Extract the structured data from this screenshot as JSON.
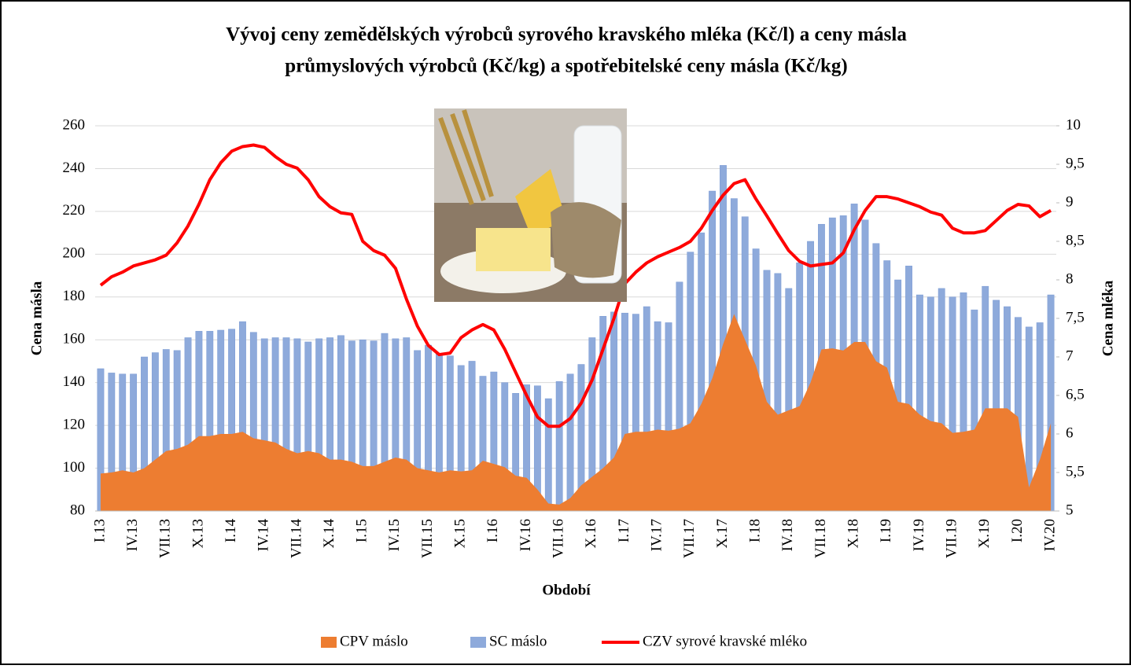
{
  "chart_data": {
    "type": "combo",
    "title": [
      "Vývoj ceny zemědělských  výrobců syrového kravského mléka (Kč/l) a  ceny másla",
      "průmyslových výrobců (Kč/kg) a spotřebitelské ceny másla (Kč/kg)"
    ],
    "x_label": "Období",
    "y_label": "Cena másla",
    "y2_label": "Cena mléka",
    "categories": [
      "I.13",
      null,
      null,
      "IV.13",
      null,
      null,
      "VII.13",
      null,
      null,
      "X.13",
      null,
      null,
      "I.14",
      null,
      null,
      "IV.14",
      null,
      null,
      "VII.14",
      null,
      null,
      "X.14",
      null,
      null,
      "I.15",
      null,
      null,
      "IV.15",
      null,
      null,
      "VII.15",
      null,
      null,
      "X.15",
      null,
      null,
      "I.16",
      null,
      null,
      "IV.16",
      null,
      null,
      "VII.16",
      null,
      null,
      "X.16",
      null,
      null,
      "I.17",
      null,
      null,
      "IV.17",
      null,
      null,
      "VII.17",
      null,
      null,
      "X.17",
      null,
      null,
      "I.18",
      null,
      null,
      "IV.18",
      null,
      null,
      "VII.18",
      null,
      null,
      "X.18",
      null,
      null,
      "I.19",
      null,
      null,
      "IV.19",
      null,
      null,
      "VII.19",
      null,
      null,
      "X.19",
      null,
      null,
      "I.20",
      null,
      null,
      "IV.20"
    ],
    "series": [
      {
        "name": "CPV máslo",
        "type": "area",
        "color": "#ed7d31",
        "values": [
          97.5,
          98,
          99,
          98,
          100,
          104,
          108,
          109,
          111,
          115,
          115,
          116,
          116,
          117,
          114,
          113,
          112,
          109,
          107,
          108,
          107,
          104,
          104,
          103,
          101,
          101,
          103,
          105,
          104,
          100,
          99,
          98,
          99,
          98.5,
          99,
          103.5,
          102,
          100.5,
          96.5,
          95.5,
          90,
          83.5,
          83,
          86,
          92,
          96,
          100,
          105,
          116,
          117,
          117,
          118,
          117.5,
          118.5,
          121,
          130,
          142,
          158,
          172,
          160,
          148,
          131,
          125,
          127,
          129,
          140,
          155.5,
          156,
          155,
          159,
          159,
          150,
          147,
          131,
          130,
          125,
          122,
          121,
          116.5,
          117,
          118,
          128,
          128,
          128,
          124,
          91,
          104,
          121
        ]
      },
      {
        "name": "SC máslo",
        "type": "bar",
        "color": "#8eaadb",
        "values": [
          146.5,
          144.5,
          144,
          144,
          152,
          154,
          155.5,
          155,
          161,
          164,
          164,
          164.5,
          165,
          168.5,
          163.5,
          160.5,
          161,
          161,
          160.5,
          159,
          160.5,
          161,
          162,
          159.5,
          160,
          159.5,
          163,
          160.5,
          161,
          155,
          157.5,
          153.5,
          152.5,
          148,
          150,
          143,
          145,
          140,
          135,
          139,
          138.5,
          132.5,
          140.5,
          144,
          148.5,
          161,
          171,
          173,
          172.5,
          172,
          175.5,
          168.5,
          168,
          187,
          201,
          210,
          229.5,
          241.5,
          226,
          217.5,
          202.5,
          192.5,
          191,
          184,
          196,
          206,
          214,
          217,
          218,
          223.5,
          216,
          205,
          197,
          188,
          194.5,
          181,
          180,
          184,
          180,
          182,
          174,
          185,
          178.5,
          175.5,
          170.5,
          166,
          168,
          181
        ]
      },
      {
        "name": "CZV syrové kravské mléko",
        "type": "line",
        "axis": "y2",
        "color": "#ff0000",
        "values": [
          7.93,
          8.04,
          8.1,
          8.18,
          8.22,
          8.26,
          8.32,
          8.48,
          8.7,
          8.98,
          9.3,
          9.52,
          9.67,
          9.73,
          9.75,
          9.72,
          9.6,
          9.5,
          9.45,
          9.3,
          9.08,
          8.95,
          8.87,
          8.85,
          8.5,
          8.38,
          8.32,
          8.15,
          7.75,
          7.4,
          7.15,
          7.03,
          7.05,
          7.25,
          7.35,
          7.42,
          7.35,
          7.1,
          6.8,
          6.5,
          6.22,
          6.1,
          6.1,
          6.2,
          6.4,
          6.7,
          7.1,
          7.5,
          7.95,
          8.1,
          8.22,
          8.3,
          8.36,
          8.42,
          8.5,
          8.67,
          8.9,
          9.1,
          9.25,
          9.3,
          9.05,
          8.83,
          8.6,
          8.38,
          8.24,
          8.18,
          8.2,
          8.22,
          8.35,
          8.65,
          8.9,
          9.08,
          9.08,
          9.05,
          9.0,
          8.95,
          8.88,
          8.84,
          8.67,
          8.61,
          8.61,
          8.64,
          8.77,
          8.9,
          8.98,
          8.96,
          8.82,
          8.9
        ]
      }
    ],
    "ylim": [
      80,
      260
    ],
    "yticks": [
      80,
      100,
      120,
      140,
      160,
      180,
      200,
      220,
      240,
      260
    ],
    "y2lim": [
      5,
      10
    ],
    "y2ticks": [
      5,
      {
        "value": 5.5,
        "label": "5,5"
      },
      6,
      {
        "value": 6.5,
        "label": "6,5"
      },
      7,
      {
        "value": 7.5,
        "label": "7,5"
      },
      8,
      {
        "value": 8.5,
        "label": "8,5"
      },
      9,
      {
        "value": 9.5,
        "label": "9,5"
      },
      10
    ],
    "grid": true,
    "legend": "bottom"
  }
}
